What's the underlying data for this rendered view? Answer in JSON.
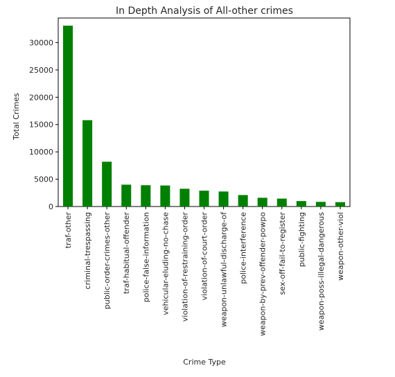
{
  "chart_data": {
    "type": "bar",
    "title": "In Depth Analysis of All-other crimes",
    "xlabel": "Crime Type",
    "ylabel": "Total Crimes",
    "ylim": [
      0,
      34500
    ],
    "yticks": [
      0,
      5000,
      10000,
      15000,
      20000,
      25000,
      30000
    ],
    "grid": false,
    "bar_color": "#008000",
    "categories": [
      "traf-other",
      "criminal-trespassing",
      "public-order-crimes-other",
      "traf-habitual-offender",
      "police-false-information",
      "vehicular-eluding-no-chase",
      "violation-of-restraining-order",
      "violation-of-court-order",
      "weapon-unlawful-discharge-of",
      "police-interference",
      "weapon-by-prev-offender-powpo",
      "sex-off-fail-to-register",
      "public-fighting",
      "weapon-poss-illegal-dangerous",
      "weapon-other-viol"
    ],
    "values": [
      33100,
      15800,
      8200,
      4000,
      3900,
      3850,
      3250,
      2900,
      2750,
      2100,
      1600,
      1450,
      1000,
      850,
      800
    ]
  }
}
